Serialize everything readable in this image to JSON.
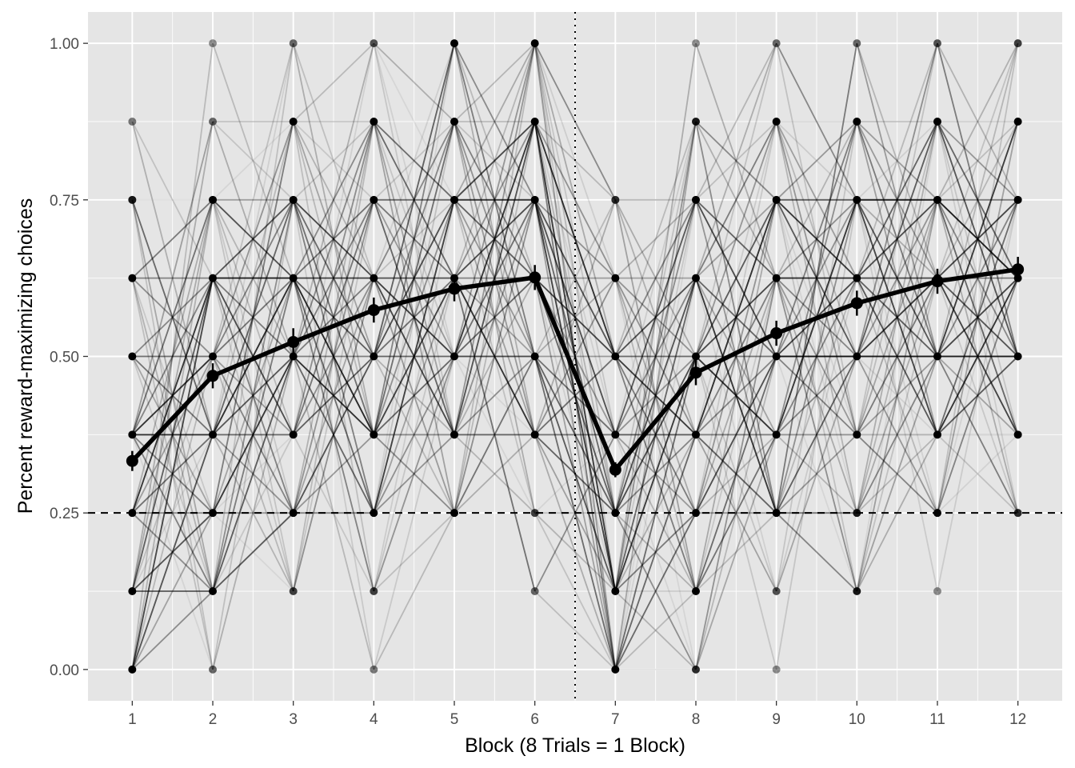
{
  "chart_data": {
    "type": "line",
    "title": "",
    "xlabel": "Block (8 Trials = 1 Block)",
    "ylabel": "Percent reward-maximizing choices",
    "x": [
      1,
      2,
      3,
      4,
      5,
      6,
      7,
      8,
      9,
      10,
      11,
      12
    ],
    "x_tick_labels": [
      "1",
      "2",
      "3",
      "4",
      "5",
      "6",
      "7",
      "8",
      "9",
      "10",
      "11",
      "12"
    ],
    "y_ticks": [
      0.0,
      0.25,
      0.5,
      0.75,
      1.0
    ],
    "y_tick_labels": [
      "0.00",
      "0.25",
      "0.50",
      "0.75",
      "1.00"
    ],
    "xlim": [
      0.45,
      12.55
    ],
    "ylim": [
      -0.05,
      1.05
    ],
    "grid": true,
    "legend": "none",
    "colors": {
      "panel_background": "#e5e5e5",
      "grid_line": "#ffffff",
      "data": "#000000",
      "tick_text": "#4d4d4d"
    },
    "possible_values": [
      0.0,
      0.125,
      0.25,
      0.375,
      0.5,
      0.625,
      0.75,
      0.875,
      1.0
    ],
    "reference_lines": [
      {
        "orientation": "horizontal",
        "value": 0.25,
        "style": "dashed"
      },
      {
        "orientation": "vertical",
        "value": 6.5,
        "style": "dotted"
      }
    ],
    "mean_series": {
      "values": [
        0.333,
        0.469,
        0.523,
        0.574,
        0.608,
        0.626,
        0.319,
        0.474,
        0.537,
        0.585,
        0.62,
        0.639
      ],
      "error": [
        0.016,
        0.02,
        0.022,
        0.02,
        0.02,
        0.02,
        0.012,
        0.02,
        0.02,
        0.02,
        0.02,
        0.02
      ]
    }
  }
}
